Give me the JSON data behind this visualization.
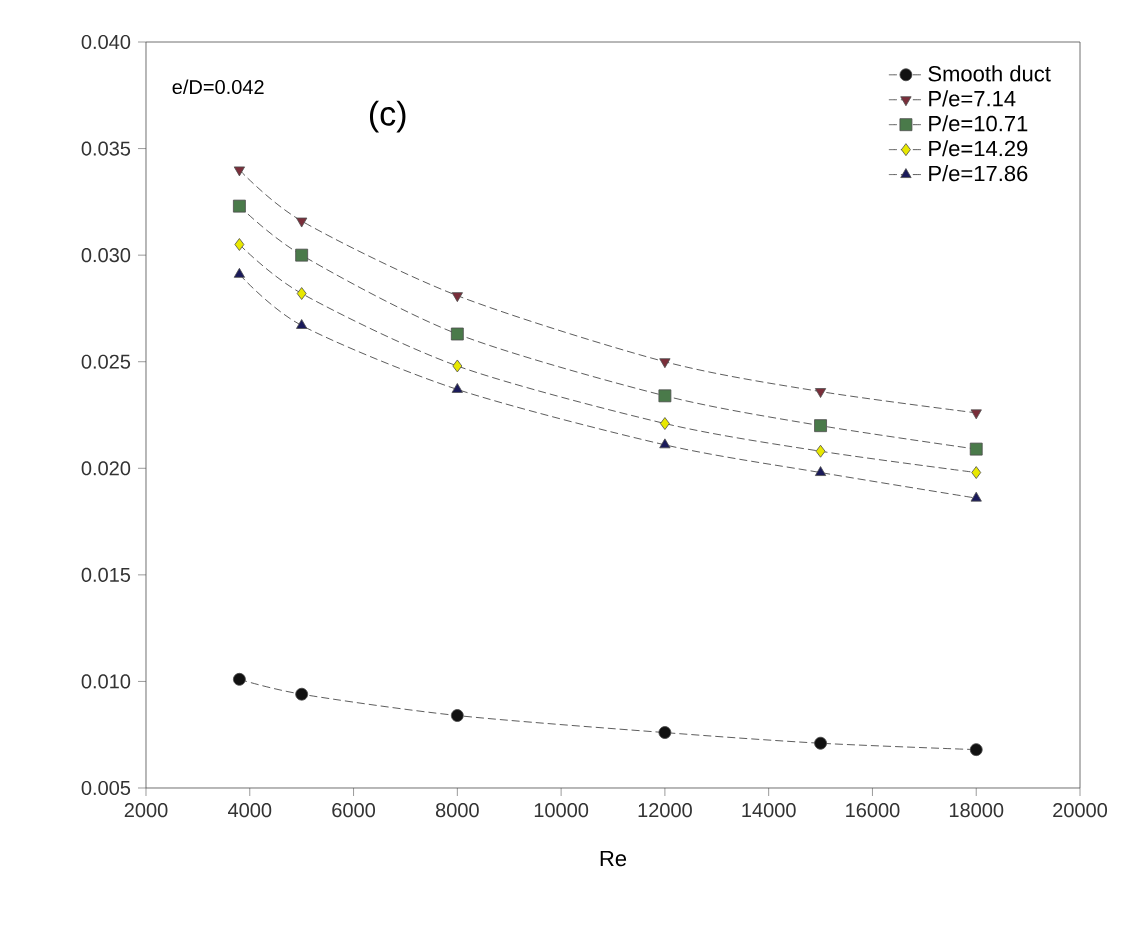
{
  "chart_data": {
    "type": "line",
    "xlabel": "Re",
    "annotations": [
      "e/D=0.042",
      "(c)"
    ],
    "x": [
      3800,
      5000,
      8000,
      12000,
      15000,
      18000
    ],
    "series": [
      {
        "name": "Smooth duct",
        "color": "#111111",
        "marker": "circle",
        "values": [
          0.0101,
          0.0094,
          0.0084,
          0.0076,
          0.0071,
          0.0068
        ]
      },
      {
        "name": "P/e=7.14",
        "color": "#7a2e3a",
        "marker": "triangle-down",
        "values": [
          0.034,
          0.0316,
          0.0281,
          0.025,
          0.0236,
          0.0226
        ]
      },
      {
        "name": "P/e=10.71",
        "color": "#4a7a4a",
        "marker": "square",
        "values": [
          0.0323,
          0.03,
          0.0263,
          0.0234,
          0.022,
          0.0209
        ]
      },
      {
        "name": "P/e=14.29",
        "color": "#e8e800",
        "marker": "diamond",
        "values": [
          0.0305,
          0.0282,
          0.0248,
          0.0221,
          0.0208,
          0.0198
        ]
      },
      {
        "name": "P/e=17.86",
        "color": "#1a1a5a",
        "marker": "triangle",
        "values": [
          0.0291,
          0.0267,
          0.0237,
          0.0211,
          0.0198,
          0.0186
        ]
      }
    ],
    "xlim": [
      2000,
      20000
    ],
    "xticks": [
      2000,
      4000,
      6000,
      8000,
      10000,
      12000,
      14000,
      16000,
      18000,
      20000
    ],
    "ylim": [
      0.005,
      0.04
    ],
    "yticks": [
      {
        "value": 0.005,
        "label": "0.005"
      },
      {
        "value": 0.01,
        "label": "0.010"
      },
      {
        "value": 0.015,
        "label": "0.015"
      },
      {
        "value": 0.02,
        "label": "0.020"
      },
      {
        "value": 0.025,
        "label": "0.025"
      },
      {
        "value": 0.03,
        "label": "0.030"
      },
      {
        "value": 0.035,
        "label": "0.035"
      },
      {
        "value": 0.04,
        "label": "0.040"
      }
    ],
    "legend": "top right",
    "line_style": "dashed",
    "grid": false
  }
}
